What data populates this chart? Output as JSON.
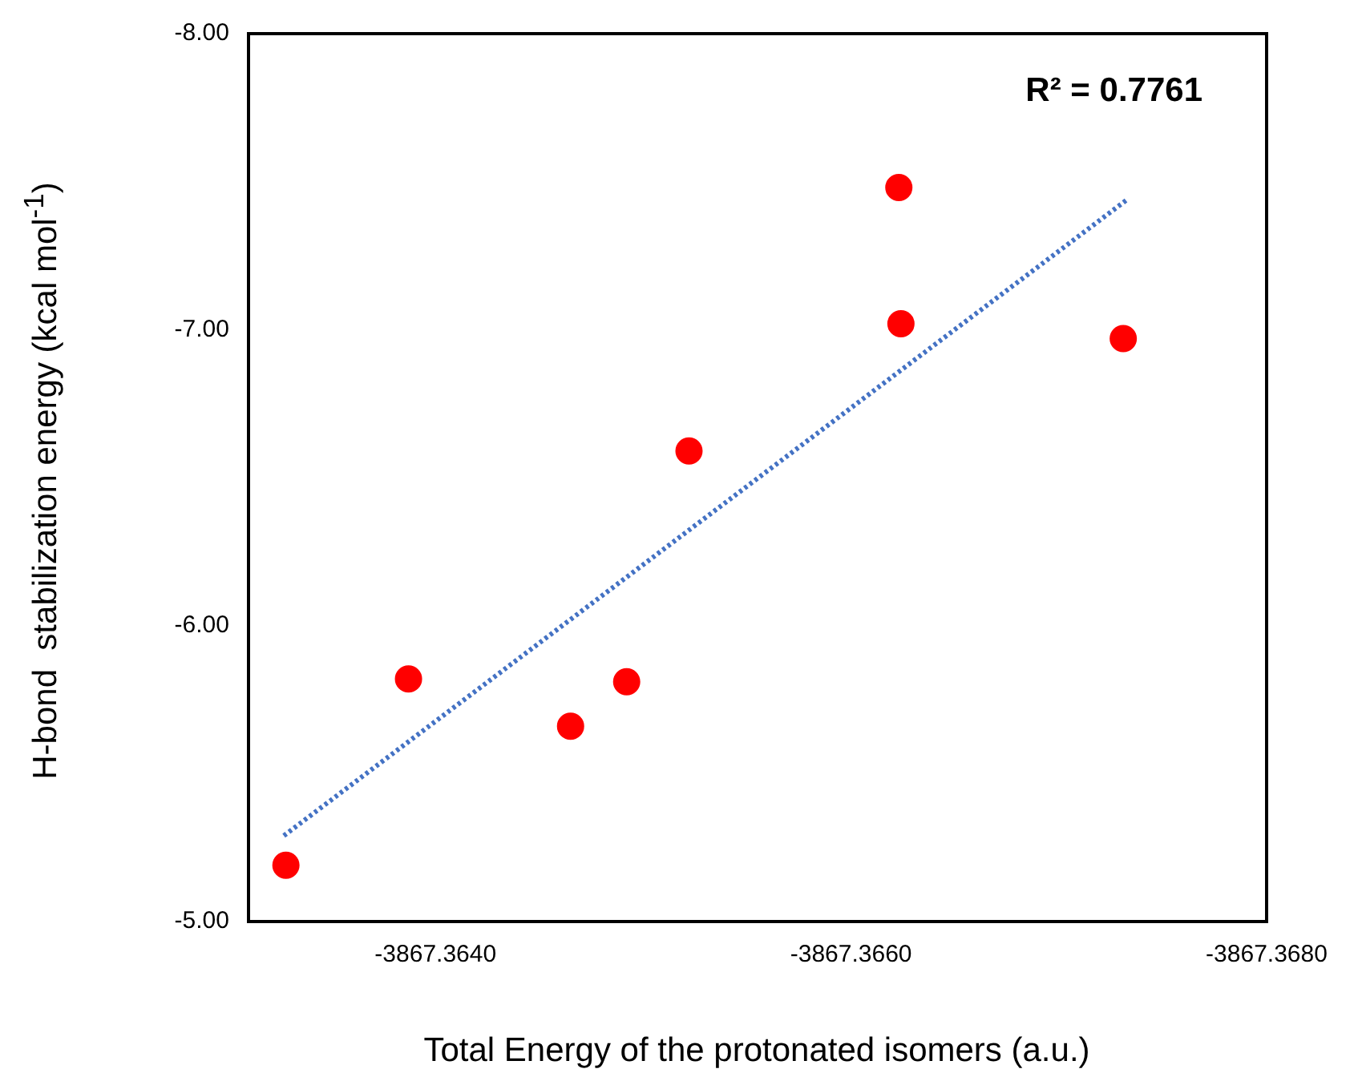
{
  "chart_data": {
    "type": "scatter",
    "xlabel": "Total Energy of the protonated isomers (a.u.)",
    "ylabel": "H-bond  stabilization energy (kcal mol$^{-1}$)",
    "xlim": [
      -3867.3631,
      -3867.368
    ],
    "xticks": [
      {
        "value": -3867.364,
        "label": "-3867.3640"
      },
      {
        "value": -3867.366,
        "label": "-3867.3660"
      },
      {
        "value": -3867.368,
        "label": "-3867.3680"
      }
    ],
    "ylim": [
      -5,
      -8
    ],
    "yticks": [
      {
        "value": -5,
        "label": "-5.00"
      },
      {
        "value": -6,
        "label": "-6.00"
      },
      {
        "value": -7,
        "label": "-7.00"
      },
      {
        "value": -8,
        "label": "-8.00"
      }
    ],
    "grid": false,
    "legend": false,
    "marker": "circle",
    "annotations": [
      "R² = 0.7761"
    ],
    "series": [
      {
        "color": "#ff0000",
        "x": [
          -3867.36328,
          -3867.36387,
          -3867.36465,
          -3867.36492,
          -3867.36522,
          -3867.36623,
          -3867.36624,
          -3867.36731
        ],
        "values": [
          -5.19,
          -5.82,
          -5.66,
          -5.81,
          -6.59,
          -7.48,
          -7.02,
          -6.97
        ]
      },
      {
        "type": "line",
        "color": "#4472c4",
        "line_style": "dotted",
        "marker": "none",
        "x": [
          -3867.36327,
          -3867.36733
        ],
        "values": [
          -5.29,
          -7.44
        ]
      }
    ]
  }
}
